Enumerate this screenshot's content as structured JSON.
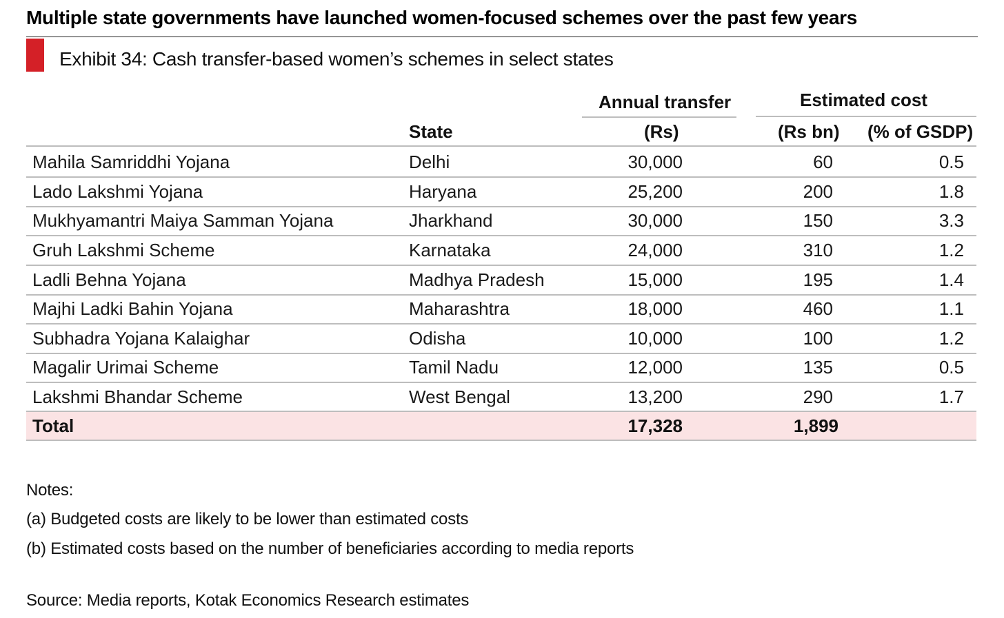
{
  "headline": "Multiple state governments have launched women-focused schemes over the past few years",
  "exhibit_title": "Exhibit 34: Cash transfer-based women’s schemes in select states",
  "table": {
    "headers": {
      "state": "State",
      "annual_group": "Annual transfer",
      "annual_unit": "(Rs)",
      "cost_group": "Estimated cost",
      "cost_unit": "(Rs bn)",
      "gsdp_unit": "(% of GSDP)"
    },
    "rows": [
      {
        "scheme": "Mahila Samriddhi Yojana",
        "state": "Delhi",
        "annual": "30,000",
        "cost": "60",
        "gsdp": "0.5"
      },
      {
        "scheme": "Lado Lakshmi Yojana",
        "state": "Haryana",
        "annual": "25,200",
        "cost": "200",
        "gsdp": "1.8"
      },
      {
        "scheme": "Mukhyamantri Maiya Samman Yojana",
        "state": "Jharkhand",
        "annual": "30,000",
        "cost": "150",
        "gsdp": "3.3"
      },
      {
        "scheme": "Gruh Lakshmi Scheme",
        "state": "Karnataka",
        "annual": "24,000",
        "cost": "310",
        "gsdp": "1.2"
      },
      {
        "scheme": "Ladli Behna Yojana",
        "state": "Madhya Pradesh",
        "annual": "15,000",
        "cost": "195",
        "gsdp": "1.4"
      },
      {
        "scheme": "Majhi Ladki Bahin Yojana",
        "state": "Maharashtra",
        "annual": "18,000",
        "cost": "460",
        "gsdp": "1.1"
      },
      {
        "scheme": "Subhadra Yojana Kalaighar",
        "state": "Odisha",
        "annual": "10,000",
        "cost": "100",
        "gsdp": "1.2"
      },
      {
        "scheme": "Magalir Urimai Scheme",
        "state": "Tamil Nadu",
        "annual": "12,000",
        "cost": "135",
        "gsdp": "0.5"
      },
      {
        "scheme": "Lakshmi Bhandar Scheme",
        "state": "West Bengal",
        "annual": "13,200",
        "cost": "290",
        "gsdp": "1.7"
      }
    ],
    "total": {
      "label": "Total",
      "annual": "17,328",
      "cost": "1,899"
    }
  },
  "notes": {
    "heading": "Notes:",
    "items": [
      "(a) Budgeted costs are likely to be lower than estimated costs",
      "(b) Estimated costs based on the number of beneficiaries according to media reports"
    ]
  },
  "source": "Source: Media reports, Kotak Economics Research estimates",
  "colors": {
    "accent": "#d42027",
    "total_row_bg": "#fbe3e4",
    "rule": "#bdbdbd"
  }
}
